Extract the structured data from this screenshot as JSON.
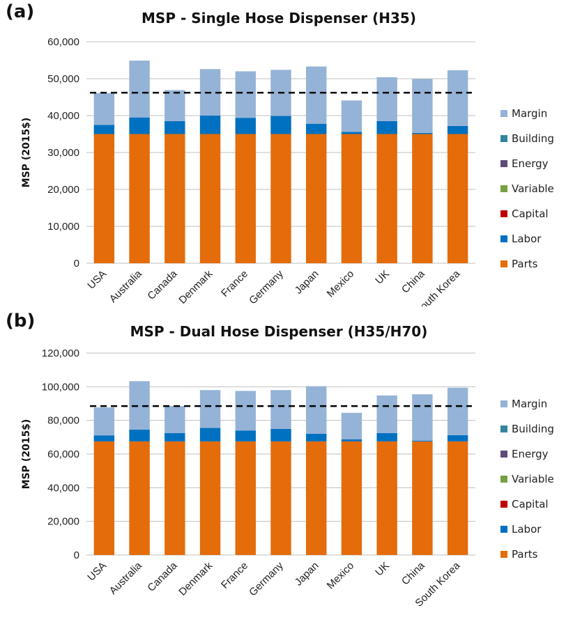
{
  "panels": {
    "a": {
      "letter": "(a)"
    },
    "b": {
      "letter": "(b)"
    }
  },
  "legend": [
    {
      "name": "Margin",
      "color": "#95b3d7"
    },
    {
      "name": "Building",
      "color": "#31859c"
    },
    {
      "name": "Energy",
      "color": "#604a7b"
    },
    {
      "name": "Variable",
      "color": "#77a040"
    },
    {
      "name": "Capital",
      "color": "#c00000"
    },
    {
      "name": "Labor",
      "color": "#0070c0"
    },
    {
      "name": "Parts",
      "color": "#e46c0a"
    }
  ],
  "chart_data": [
    {
      "type": "bar",
      "stacked": true,
      "title": "MSP - Single Hose Dispenser (H35)",
      "xlabel": "",
      "ylabel": "MSP (2015$)",
      "ylim": [
        0,
        60000
      ],
      "yticks": [
        "0",
        "10,000",
        "20,000",
        "30,000",
        "40,000",
        "50,000",
        "60,000"
      ],
      "grid": true,
      "legend_position": "right",
      "reference_line": {
        "value": 46200,
        "style": "dashed",
        "color": "#000000"
      },
      "categories": [
        "USA",
        "Australia",
        "Canada",
        "Denmark",
        "France",
        "Germany",
        "Japan",
        "Mexico",
        "UK",
        "China",
        "South Korea"
      ],
      "series": [
        {
          "name": "Parts",
          "color": "#e46c0a",
          "values": [
            35000,
            35000,
            35000,
            35000,
            35000,
            35000,
            35000,
            35000,
            35000,
            35000,
            35000
          ]
        },
        {
          "name": "Labor",
          "color": "#0070c0",
          "values": [
            2500,
            4500,
            3500,
            5000,
            4400,
            4900,
            2800,
            600,
            3500,
            300,
            2200
          ]
        },
        {
          "name": "Capital",
          "color": "#c00000",
          "values": [
            0,
            0,
            0,
            0,
            0,
            0,
            0,
            0,
            0,
            0,
            0
          ]
        },
        {
          "name": "Variable",
          "color": "#77a040",
          "values": [
            0,
            0,
            0,
            0,
            0,
            0,
            0,
            0,
            0,
            0,
            0
          ]
        },
        {
          "name": "Energy",
          "color": "#604a7b",
          "values": [
            0,
            0,
            0,
            0,
            0,
            0,
            0,
            0,
            0,
            0,
            0
          ]
        },
        {
          "name": "Building",
          "color": "#31859c",
          "values": [
            0,
            0,
            0,
            0,
            0,
            0,
            0,
            0,
            0,
            0,
            0
          ]
        },
        {
          "name": "Margin",
          "color": "#95b3d7",
          "values": [
            8600,
            15400,
            8400,
            12600,
            12600,
            12500,
            15500,
            8500,
            11900,
            14600,
            15100
          ]
        }
      ]
    },
    {
      "type": "bar",
      "stacked": true,
      "title": "MSP - Dual Hose Dispenser (H35/H70)",
      "xlabel": "",
      "ylabel": "MSP (2015$)",
      "ylim": [
        0,
        120000
      ],
      "yticks": [
        "0",
        "20,000",
        "40,000",
        "60,000",
        "80,000",
        "100,000",
        "120,000"
      ],
      "grid": true,
      "legend_position": "right",
      "reference_line": {
        "value": 88500,
        "style": "dashed",
        "color": "#000000"
      },
      "categories": [
        "USA",
        "Australia",
        "Canada",
        "Denmark",
        "France",
        "Germany",
        "Japan",
        "Mexico",
        "UK",
        "China",
        "South Korea"
      ],
      "series": [
        {
          "name": "Parts",
          "color": "#e46c0a",
          "values": [
            67500,
            67500,
            67500,
            67500,
            67500,
            67500,
            67500,
            67500,
            67500,
            67500,
            67500
          ]
        },
        {
          "name": "Labor",
          "color": "#0070c0",
          "values": [
            3600,
            7000,
            5000,
            8000,
            6500,
            7500,
            4500,
            1200,
            5000,
            500,
            3700
          ]
        },
        {
          "name": "Capital",
          "color": "#c00000",
          "values": [
            0,
            0,
            0,
            0,
            0,
            0,
            0,
            0,
            0,
            0,
            0
          ]
        },
        {
          "name": "Variable",
          "color": "#77a040",
          "values": [
            0,
            0,
            0,
            0,
            0,
            0,
            0,
            0,
            0,
            0,
            0
          ]
        },
        {
          "name": "Energy",
          "color": "#604a7b",
          "values": [
            0,
            0,
            0,
            0,
            0,
            0,
            0,
            0,
            0,
            0,
            0
          ]
        },
        {
          "name": "Building",
          "color": "#31859c",
          "values": [
            0,
            0,
            0,
            0,
            0,
            0,
            0,
            0,
            0,
            0,
            0
          ]
        },
        {
          "name": "Margin",
          "color": "#95b3d7",
          "values": [
            16600,
            28800,
            16000,
            22500,
            23500,
            23000,
            28300,
            15800,
            22300,
            27500,
            28200
          ]
        }
      ]
    }
  ]
}
